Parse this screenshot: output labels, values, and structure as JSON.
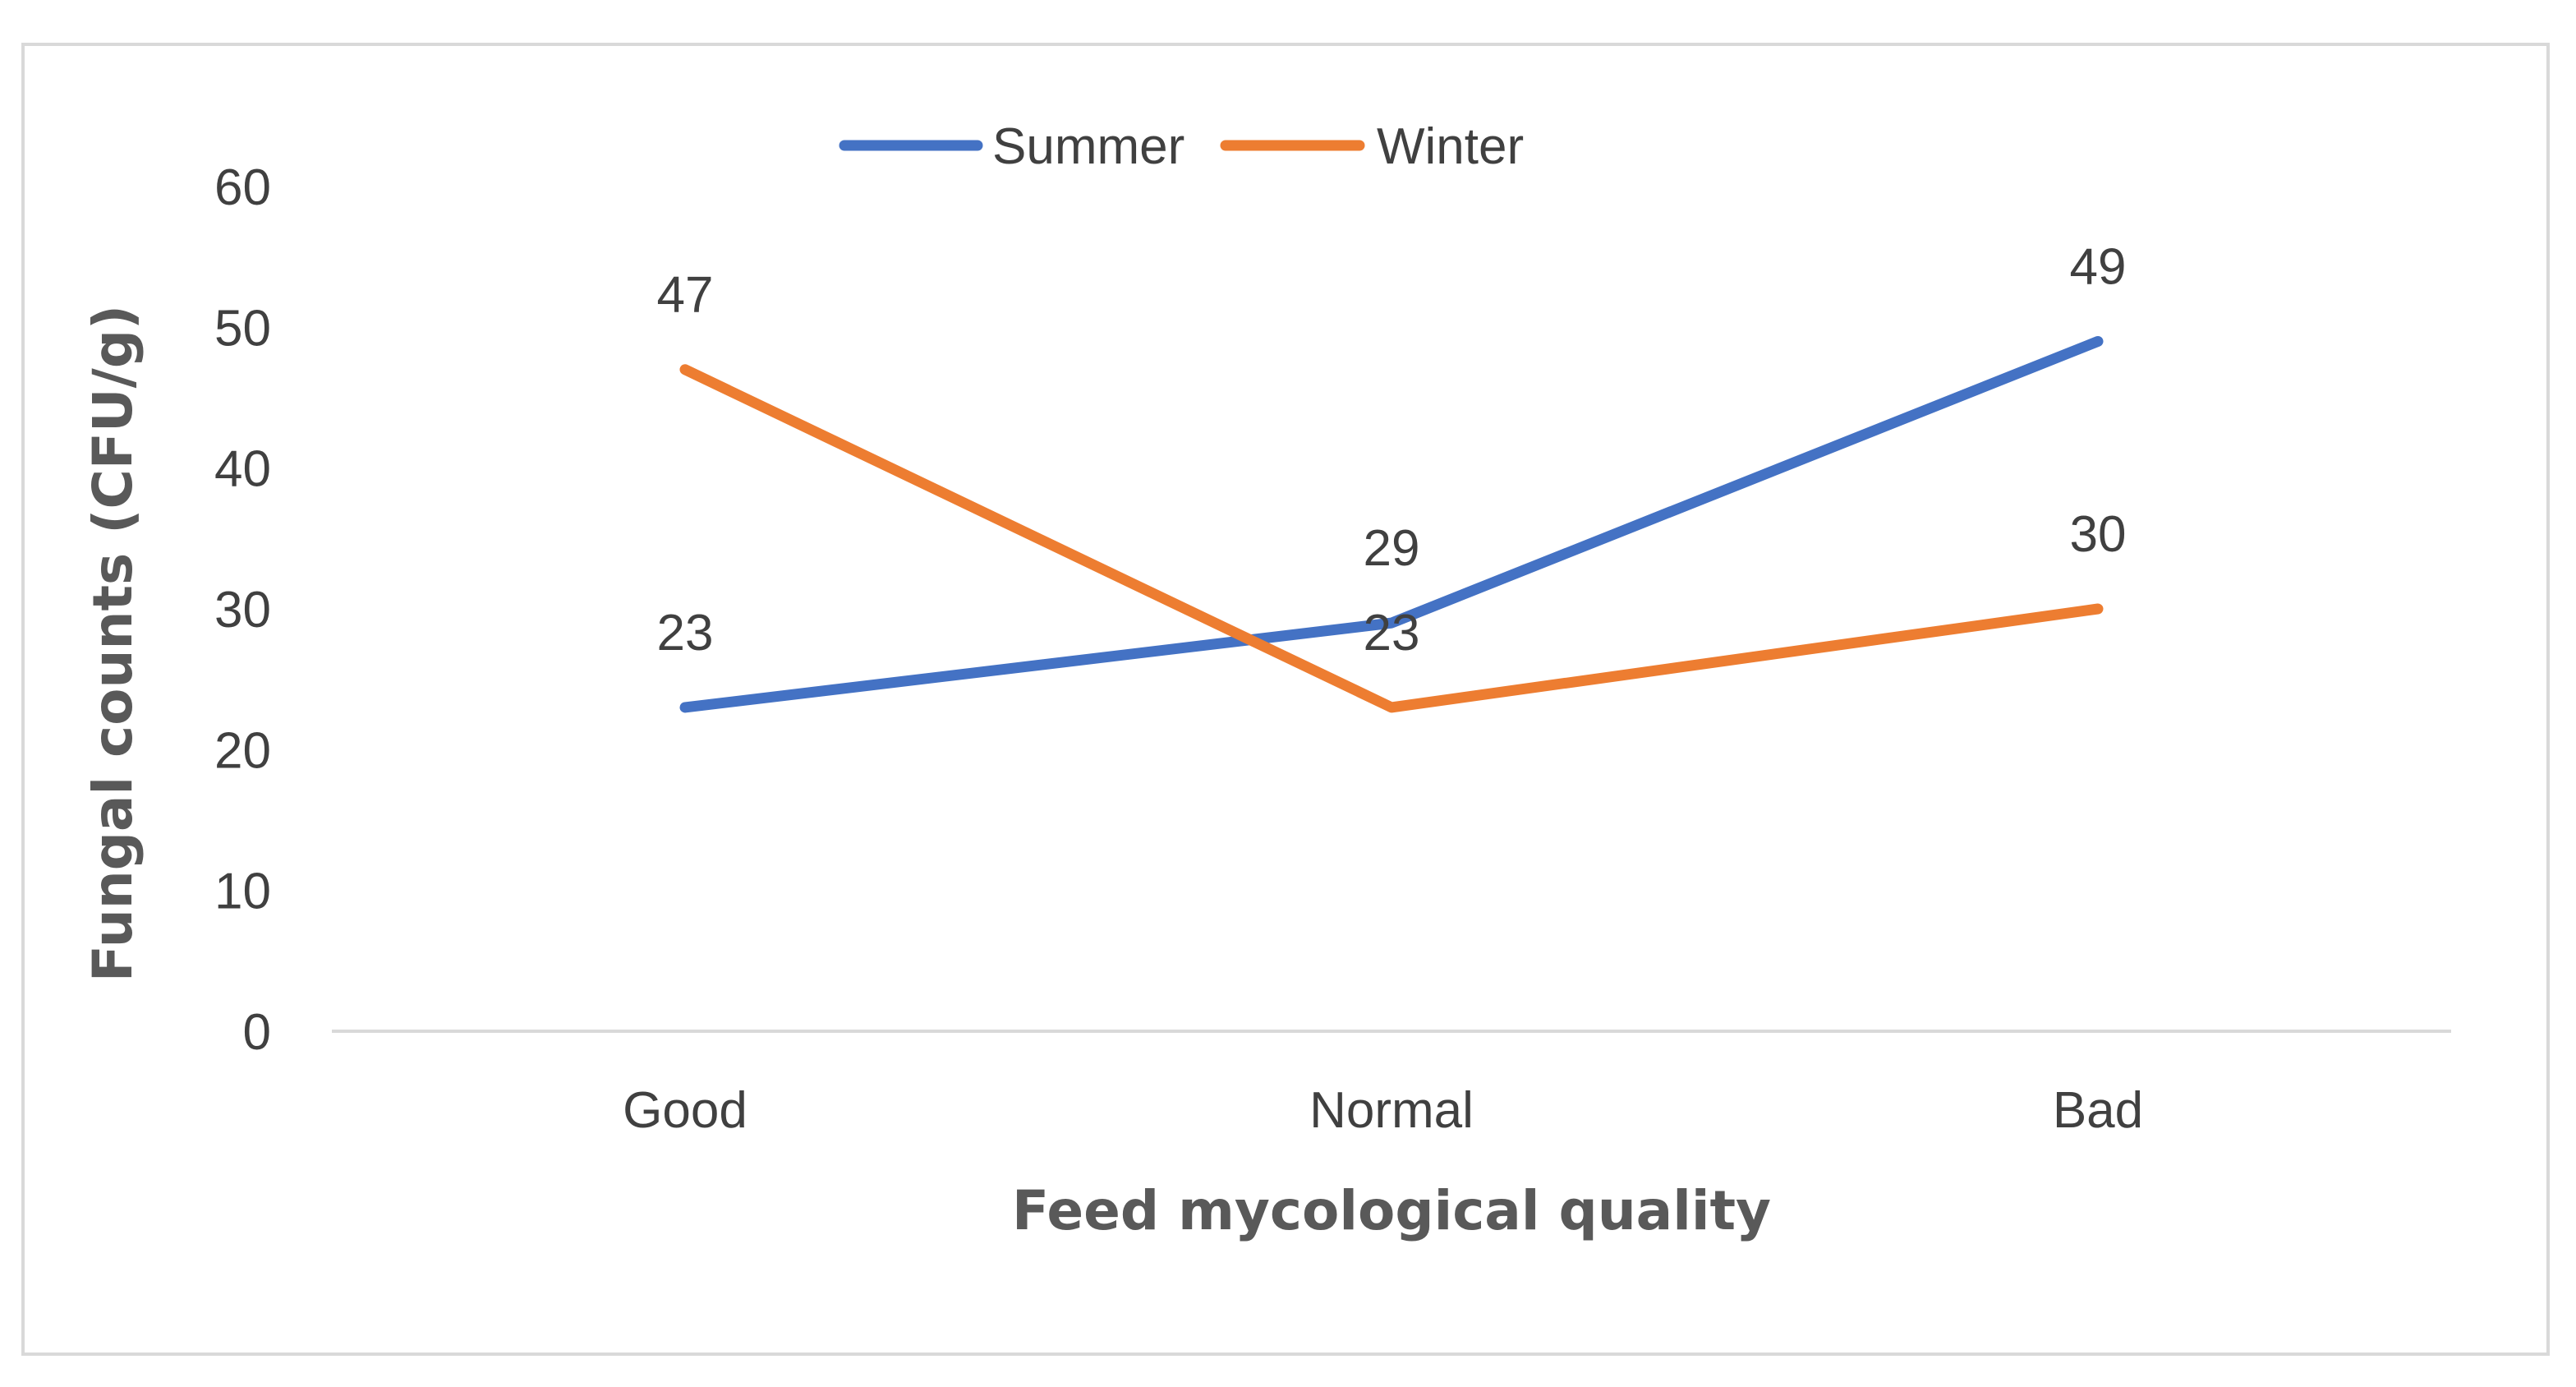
{
  "chart_data": {
    "type": "line",
    "categories": [
      "Good",
      "Normal",
      "Bad"
    ],
    "series": [
      {
        "name": "Summer",
        "values": [
          23,
          29,
          49
        ],
        "color": "#4472C4"
      },
      {
        "name": "Winter",
        "values": [
          47,
          23,
          30
        ],
        "color": "#ED7D31"
      }
    ],
    "xlabel": "Feed mycological quality",
    "ylabel": "Fungal counts (CFU/g)",
    "ylim": [
      0,
      60
    ],
    "yticks": [
      0,
      10,
      20,
      30,
      40,
      50,
      60
    ],
    "grid": false,
    "legend": "top-center",
    "data_labels": true
  }
}
